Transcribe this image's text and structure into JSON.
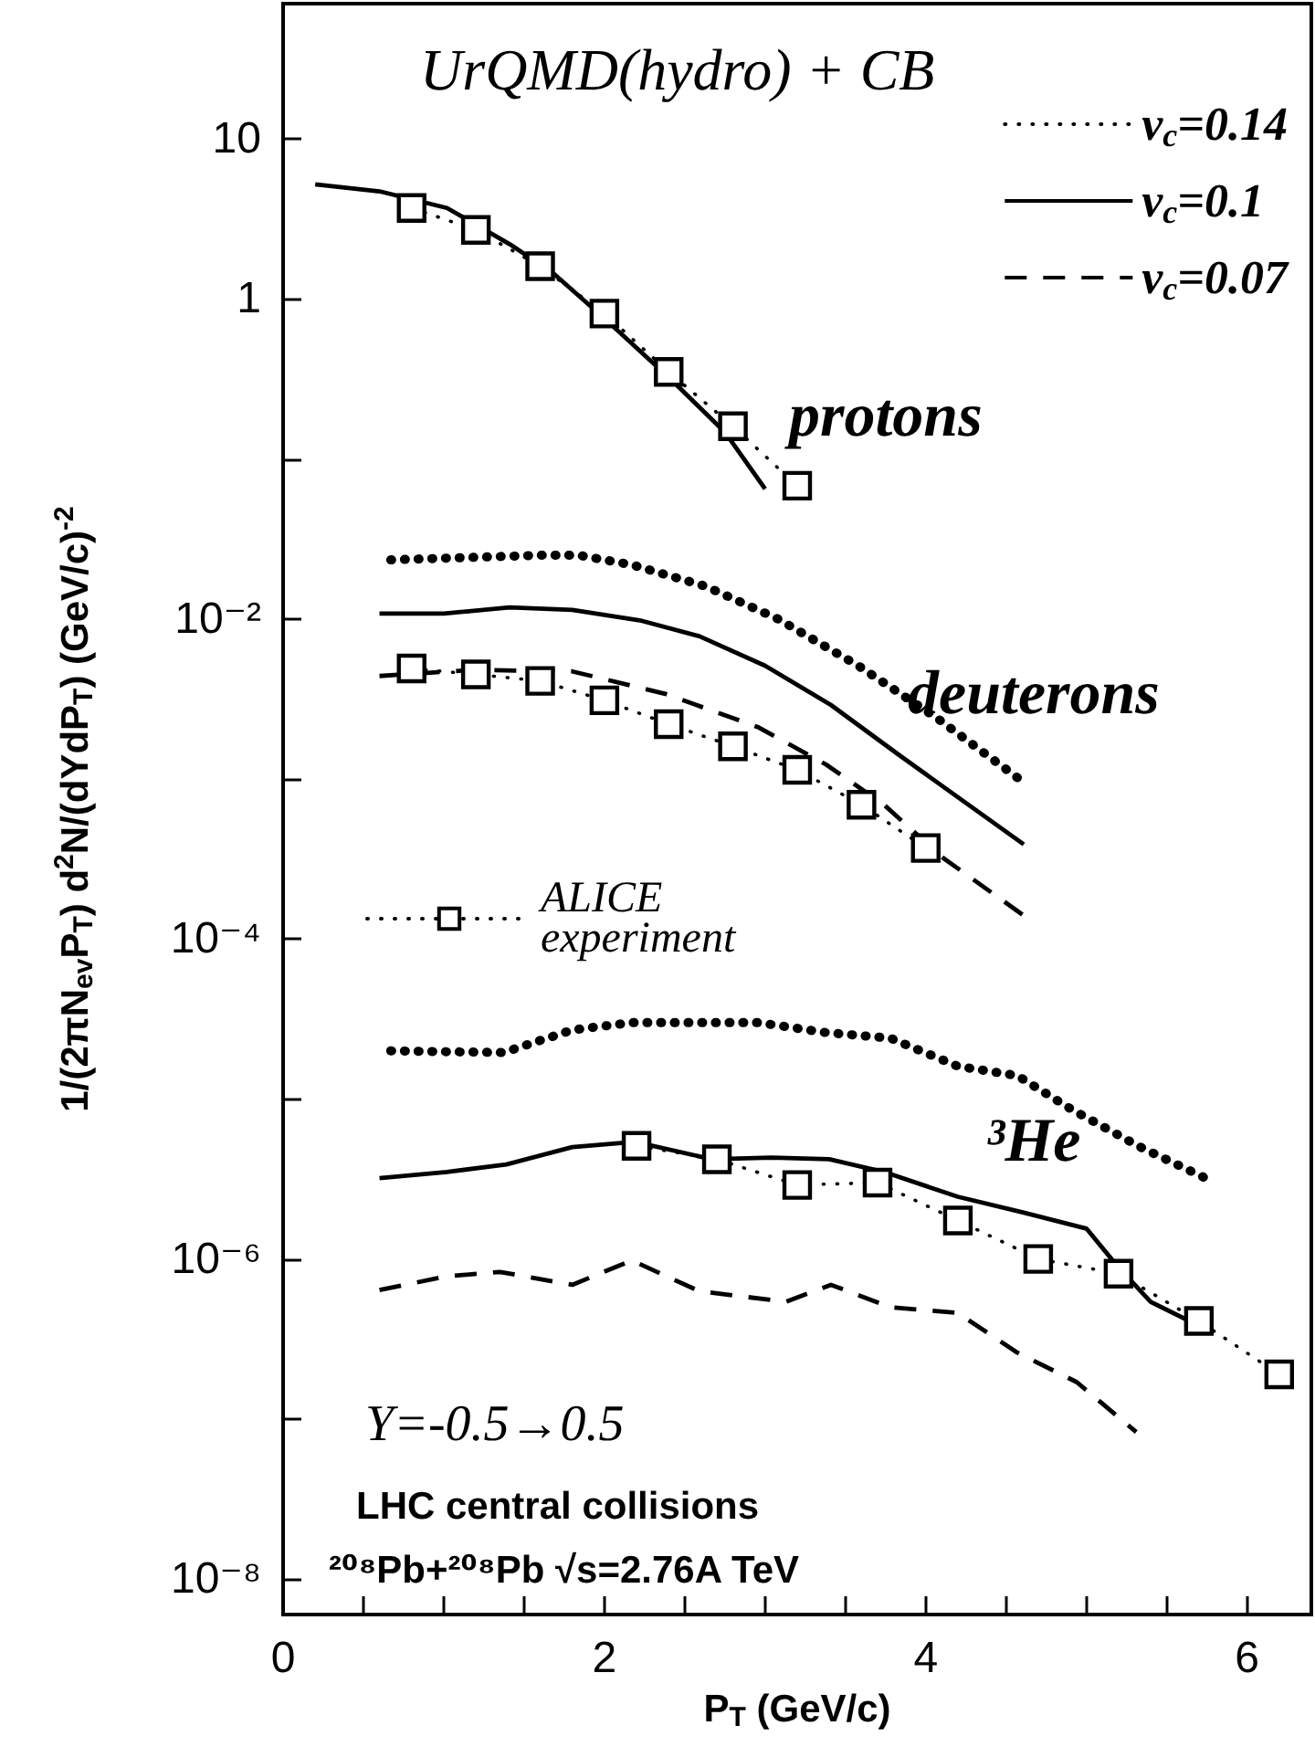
{
  "chart_data": {
    "type": "line",
    "title": "UrQMD(hydro) + CB",
    "xlabel": "P$_{T}$ (GeV/c)",
    "ylabel": "1/(2πN$_{ev}$P$_{T}$) d$^{2}$N/(dYdP$_{T}$) (GeV/c)$^{-2}$",
    "log": "y",
    "xlim": [
      0,
      6.4
    ],
    "ylim": [
      6e-09,
      70
    ],
    "xticks": [
      0,
      {
        "value": 0.5,
        "label": null
      },
      {
        "value": 1,
        "label": null
      },
      {
        "value": 1.5,
        "label": null
      },
      2,
      {
        "value": 2.5,
        "label": null
      },
      {
        "value": 3,
        "label": null
      },
      {
        "value": 3.5,
        "label": null
      },
      4,
      {
        "value": 4.5,
        "label": null
      },
      {
        "value": 5,
        "label": null
      },
      {
        "value": 5.5,
        "label": null
      },
      6
    ],
    "yticks": [
      {
        "value": 10,
        "label": "10"
      },
      {
        "value": 1,
        "label": "1"
      },
      {
        "value": 0.1,
        "label": null
      },
      {
        "value": 0.01,
        "label": "10⁻²"
      },
      {
        "value": 0.001,
        "label": null
      },
      {
        "value": 0.0001,
        "label": "10⁻⁴"
      },
      {
        "value": 1e-05,
        "label": null
      },
      {
        "value": 1e-06,
        "label": "10⁻⁶"
      },
      {
        "value": 1e-07,
        "label": null
      },
      {
        "value": 1e-08,
        "label": "10⁻⁸"
      }
    ],
    "grid": false,
    "legend": "top right",
    "series": [
      {
        "name": "v$_{c}$=0.14",
        "color": "#000000",
        "line_style": "dotted",
        "marker": "none",
        "x": [
          0.67,
          1.6,
          1.84,
          2.17,
          2.63,
          3.08,
          3.58,
          4.07,
          4.57
        ],
        "values": [
          0.0234,
          0.025,
          0.025,
          0.0218,
          0.016,
          0.01,
          0.0051,
          0.0024,
          0.00102
        ]
      },
      {
        "name": "v$_{c}$=0.1",
        "color": "#000000",
        "line_style": "solid",
        "marker": "none",
        "x": [
          0.6,
          1.0,
          1.41,
          1.8,
          2.22,
          2.59,
          3.0,
          3.41,
          3.83,
          4.61
        ],
        "values": [
          0.0108,
          0.0108,
          0.0118,
          0.0114,
          0.0098,
          0.0078,
          0.0051,
          0.0029,
          0.00142,
          0.00039
        ]
      },
      {
        "name": "v$_{c}$=0.07",
        "color": "#000000",
        "line_style": "dashed",
        "marker": "none",
        "x": [
          0.6,
          1.18,
          1.8,
          2.38,
          2.96,
          3.38,
          3.74,
          4.11,
          4.61
        ],
        "values": [
          0.0044,
          0.0048,
          0.0047,
          0.0034,
          0.0021,
          0.00123,
          0.00069,
          0.00032,
          0.00014
        ]
      },
      {
        "color": "#000000",
        "line_style": "solid",
        "marker": "none",
        "x": [
          0.2,
          0.6,
          1.02,
          1.41,
          1.68,
          2.01,
          2.42,
          2.75,
          3.0
        ],
        "values": [
          5.2,
          4.7,
          3.7,
          2.2,
          1.45,
          0.74,
          0.31,
          0.147,
          0.065
        ]
      },
      {
        "color": "#000000",
        "line_style": "dotted",
        "marker": "none",
        "x": [
          0.67,
          1.37,
          1.8,
          2.17,
          2.96,
          3.38,
          3.78,
          4.2,
          4.57,
          4.9,
          5.32,
          5.77
        ],
        "values": [
          2e-05,
          1.95e-05,
          2.7e-05,
          3e-05,
          3e-05,
          2.6e-05,
          2.4e-05,
          1.6e-05,
          1.4e-05,
          8.7e-06,
          5.1e-06,
          3.1e-06
        ]
      },
      {
        "color": "#000000",
        "line_style": "solid",
        "marker": "none",
        "x": [
          0.6,
          1.02,
          1.39,
          1.8,
          2.19,
          2.67,
          3.04,
          3.4,
          3.74,
          4.2,
          4.61,
          5.0,
          5.19,
          5.4,
          5.73
        ],
        "values": [
          3.2e-06,
          3.5e-06,
          3.9e-06,
          5e-06,
          5.4e-06,
          4.2e-06,
          4.3e-06,
          4.2e-06,
          3.5e-06,
          2.45e-06,
          1.95e-06,
          1.55e-06,
          9.1e-07,
          5.4e-07,
          3.7e-07
        ]
      },
      {
        "color": "#000000",
        "line_style": "dashed",
        "marker": "none",
        "x": [
          0.6,
          1.02,
          1.35,
          1.8,
          2.17,
          2.59,
          3.13,
          3.41,
          3.78,
          4.2,
          4.57,
          4.94,
          5.31
        ],
        "values": [
          6.4e-07,
          7.8e-07,
          8.3e-07,
          6.9e-07,
          9.8e-07,
          6.3e-07,
          5.4e-07,
          6.9e-07,
          5e-07,
          4.6e-07,
          2.6e-07,
          1.7e-07,
          8.3e-08
        ]
      },
      {
        "name": "ALICE experiment",
        "color": "#000000",
        "line_style": "dotted",
        "marker": "square",
        "x": [
          0.8,
          1.2,
          1.6,
          2.0,
          2.4,
          2.8,
          3.2
        ],
        "values": [
          3.7,
          2.7,
          1.6,
          0.81,
          0.35,
          0.16,
          0.068
        ]
      },
      {
        "color": "#000000",
        "line_style": "dotted",
        "marker": "square",
        "x": [
          0.8,
          1.2,
          1.6,
          2.0,
          2.4,
          2.8,
          3.2,
          3.6,
          4.0
        ],
        "values": [
          0.0049,
          0.0045,
          0.0041,
          0.0031,
          0.0022,
          0.0016,
          0.00114,
          0.00069,
          0.00037
        ]
      },
      {
        "color": "#000000",
        "line_style": "dotted",
        "marker": "square",
        "x": [
          2.2,
          2.7,
          3.2,
          3.7,
          4.2,
          4.7,
          5.2,
          5.7,
          6.2
        ],
        "values": [
          5.1e-06,
          4.2e-06,
          2.9e-06,
          3e-06,
          1.74e-06,
          1e-06,
          8.1e-07,
          4.1e-07,
          1.9e-07
        ]
      }
    ],
    "annotations": [
      "protons",
      "deuterons",
      "³He",
      "Y=-0.5→0.5",
      "LHC central collisions",
      "²⁰⁸Pb+²⁰⁸Pb √s=2.76A TeV"
    ]
  }
}
